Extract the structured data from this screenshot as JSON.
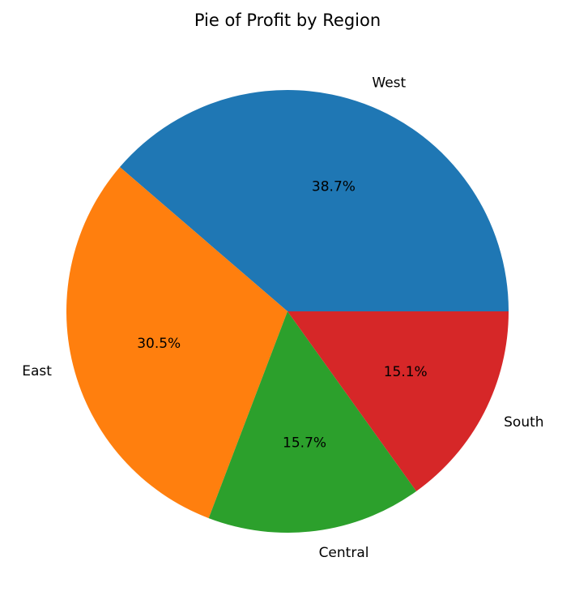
{
  "chart_data": {
    "type": "pie",
    "title": "Pie of Profit by Region",
    "start_angle_deg": 0,
    "direction": "counterclockwise",
    "slices": [
      {
        "label": "West",
        "percent": 38.7,
        "percent_label": "38.7%",
        "color": "#1f77b4"
      },
      {
        "label": "East",
        "percent": 30.5,
        "percent_label": "30.5%",
        "color": "#ff7f0e"
      },
      {
        "label": "Central",
        "percent": 15.7,
        "percent_label": "15.7%",
        "color": "#2ca02c"
      },
      {
        "label": "South",
        "percent": 15.1,
        "percent_label": "15.1%",
        "color": "#d62728"
      }
    ]
  }
}
